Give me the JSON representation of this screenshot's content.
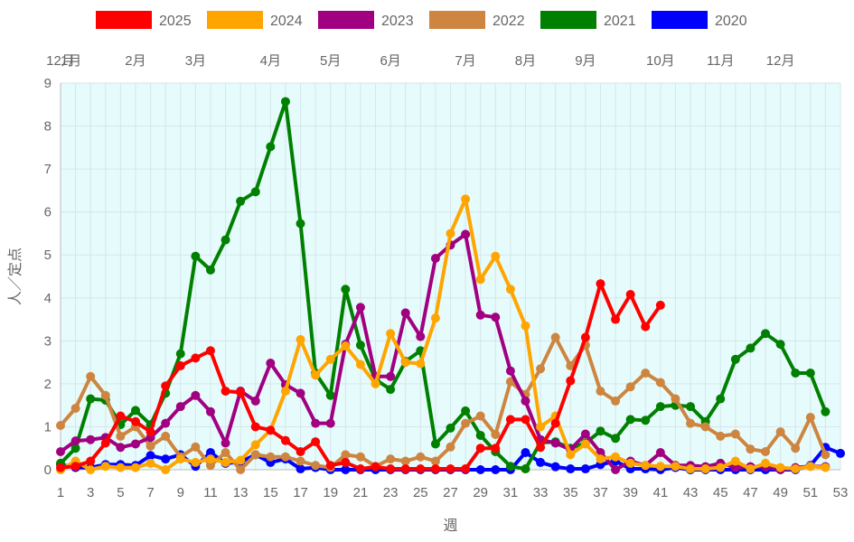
{
  "chart_data": {
    "type": "line",
    "xlabel": "週",
    "ylabel": "人／定点",
    "ylim": [
      0,
      9
    ],
    "y_ticks": [
      0,
      1,
      2,
      3,
      4,
      5,
      6,
      7,
      8,
      9
    ],
    "x_ticks": [
      1,
      3,
      5,
      7,
      9,
      11,
      13,
      15,
      17,
      19,
      21,
      23,
      25,
      27,
      29,
      31,
      33,
      35,
      37,
      39,
      41,
      43,
      45,
      47,
      49,
      51,
      53
    ],
    "xlim": [
      1,
      53
    ],
    "month_labels": [
      {
        "label": "12月",
        "week": 1.0
      },
      {
        "label": "1月",
        "week": 1.7
      },
      {
        "label": "2月",
        "week": 6.0
      },
      {
        "label": "3月",
        "week": 10.0
      },
      {
        "label": "4月",
        "week": 15.0
      },
      {
        "label": "5月",
        "week": 19.0
      },
      {
        "label": "6月",
        "week": 23.0
      },
      {
        "label": "7月",
        "week": 28.0
      },
      {
        "label": "8月",
        "week": 32.0
      },
      {
        "label": "9月",
        "week": 36.0
      },
      {
        "label": "10月",
        "week": 41.0
      },
      {
        "label": "11月",
        "week": 45.0
      },
      {
        "label": "12月",
        "week": 49.0
      }
    ],
    "grid": true,
    "legend_position": "top",
    "plot_background": "#e6fbfc",
    "series": [
      {
        "name": "2025",
        "color": "#ff0000",
        "values": [
          0.05,
          0.08,
          0.2,
          0.62,
          1.25,
          1.12,
          0.88,
          1.95,
          2.42,
          2.6,
          2.77,
          1.83,
          1.8,
          1.0,
          0.92,
          0.68,
          0.42,
          0.65,
          0.1,
          0.17,
          0.02,
          0.07,
          0.02,
          0.02,
          0.02,
          0.02,
          0.02,
          0.02,
          0.5,
          0.5,
          1.17,
          1.17,
          0.52,
          1.08,
          2.07,
          3.08,
          4.33,
          3.5,
          4.08,
          3.33,
          3.83
        ]
      },
      {
        "name": "2024",
        "color": "#ffa500",
        "values": [
          0.0,
          0.2,
          0.0,
          0.08,
          0.05,
          0.05,
          0.15,
          0.0,
          0.25,
          0.17,
          0.25,
          0.17,
          0.22,
          0.58,
          0.92,
          1.83,
          3.03,
          2.2,
          2.57,
          2.88,
          2.45,
          2.0,
          3.17,
          2.5,
          2.47,
          3.53,
          5.5,
          6.3,
          4.43,
          4.97,
          4.2,
          3.35,
          1.0,
          1.25,
          0.35,
          0.6,
          0.25,
          0.3,
          0.15,
          0.1,
          0.08,
          0.08,
          0.02,
          0.02,
          0.05,
          0.2,
          0.02,
          0.15,
          0.05,
          0.02,
          0.08,
          0.05
        ]
      },
      {
        "name": "2023",
        "color": "#a10081",
        "values": [
          0.42,
          0.67,
          0.7,
          0.75,
          0.52,
          0.6,
          0.75,
          1.08,
          1.47,
          1.73,
          1.35,
          0.62,
          1.83,
          1.6,
          2.48,
          1.98,
          1.78,
          1.08,
          1.08,
          2.92,
          3.78,
          2.17,
          2.17,
          3.65,
          3.1,
          4.92,
          5.23,
          5.48,
          3.6,
          3.55,
          2.3,
          1.6,
          0.7,
          0.62,
          0.47,
          0.83,
          0.4,
          0.0,
          0.2,
          0.1,
          0.4,
          0.1,
          0.1,
          0.07,
          0.15,
          0.05,
          0.07,
          0.07,
          0.0,
          0.05,
          0.08,
          0.07
        ]
      },
      {
        "name": "2022",
        "color": "#cd853f",
        "values": [
          1.03,
          1.43,
          2.17,
          1.73,
          0.78,
          1.0,
          0.55,
          0.78,
          0.3,
          0.53,
          0.1,
          0.4,
          0.0,
          0.35,
          0.3,
          0.3,
          0.2,
          0.1,
          0.05,
          0.35,
          0.3,
          0.08,
          0.25,
          0.2,
          0.3,
          0.2,
          0.53,
          1.08,
          1.25,
          0.82,
          2.05,
          1.75,
          2.35,
          3.08,
          2.42,
          2.9,
          1.83,
          1.6,
          1.93,
          2.25,
          2.03,
          1.65,
          1.08,
          1.0,
          0.78,
          0.83,
          0.48,
          0.42,
          0.88,
          0.5,
          1.22,
          0.35
        ]
      },
      {
        "name": "2021",
        "color": "#008000",
        "values": [
          0.15,
          0.5,
          1.65,
          1.62,
          1.05,
          1.38,
          1.05,
          1.78,
          2.7,
          4.97,
          4.65,
          5.35,
          6.25,
          6.47,
          7.52,
          8.57,
          5.73,
          2.25,
          1.73,
          4.2,
          2.9,
          2.1,
          1.87,
          2.52,
          2.77,
          0.6,
          0.97,
          1.37,
          0.8,
          0.42,
          0.08,
          0.02,
          0.63,
          0.65,
          0.5,
          0.62,
          0.9,
          0.73,
          1.17,
          1.15,
          1.47,
          1.5,
          1.47,
          1.12,
          1.65,
          2.57,
          2.83,
          3.17,
          2.92,
          2.25,
          2.25,
          1.35
        ]
      },
      {
        "name": "2020",
        "color": "#0000ff",
        "values": [
          0.12,
          0.05,
          0.05,
          0.12,
          0.12,
          0.1,
          0.33,
          0.25,
          0.35,
          0.08,
          0.4,
          0.15,
          0.18,
          0.35,
          0.17,
          0.25,
          0.02,
          0.05,
          0.0,
          0.0,
          0.0,
          0.0,
          0.0,
          0.0,
          0.0,
          0.0,
          0.0,
          0.0,
          0.0,
          0.0,
          0.0,
          0.4,
          0.17,
          0.07,
          0.02,
          0.02,
          0.12,
          0.2,
          0.02,
          0.02,
          0.0,
          0.05,
          0.0,
          0.0,
          0.0,
          0.0,
          0.0,
          0.0,
          0.0,
          0.0,
          0.1,
          0.52,
          0.38
        ]
      }
    ]
  }
}
